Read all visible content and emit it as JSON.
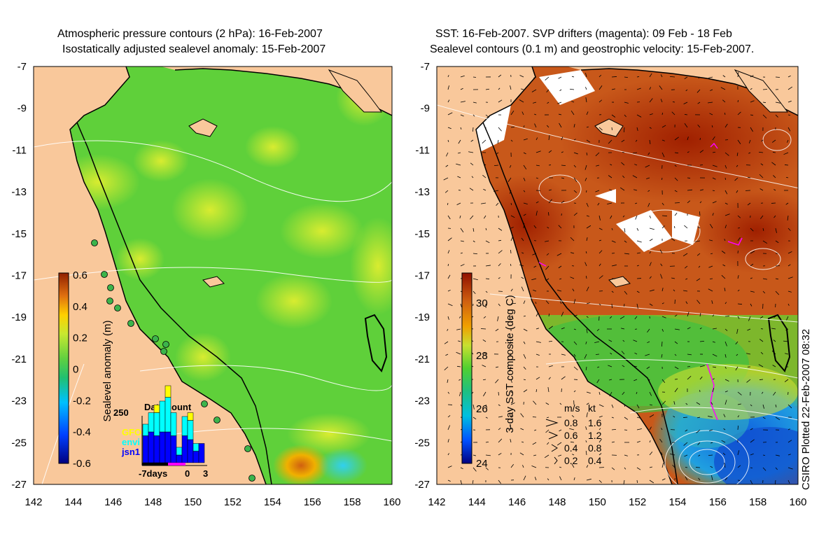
{
  "left_panel": {
    "title_line1": "Atmospheric pressure contours (2 hPa): 16-Feb-2007",
    "title_line2": "Isostatically adjusted sealevel anomaly: 15-Feb-2007",
    "colorbar_label": "Sealevel anomaly (m)",
    "colorbar_ticks": [
      "0.6",
      "0.4",
      "0.2",
      "0",
      "-0.2",
      "-0.4",
      "-0.6"
    ],
    "inset": {
      "title": "Data count",
      "y_max_label": "250",
      "legend": [
        {
          "label": "GFO",
          "color": "#ffff00"
        },
        {
          "label": "envi",
          "color": "#00ffff"
        },
        {
          "label": "jsn1",
          "color": "#0000ff"
        }
      ],
      "x_labels": [
        "-7days",
        "0",
        "3"
      ],
      "bars": [
        {
          "gfo": 0,
          "envi": 30,
          "jsn1": 70
        },
        {
          "gfo": 0,
          "envi": 50,
          "jsn1": 80
        },
        {
          "gfo": 20,
          "envi": 60,
          "jsn1": 70
        },
        {
          "gfo": 0,
          "envi": 80,
          "jsn1": 80
        },
        {
          "gfo": 30,
          "envi": 90,
          "jsn1": 80
        },
        {
          "gfo": 0,
          "envi": 60,
          "jsn1": 70
        },
        {
          "gfo": 0,
          "envi": 20,
          "jsn1": 20
        },
        {
          "gfo": 0,
          "envi": 50,
          "jsn1": 70
        },
        {
          "gfo": 20,
          "envi": 50,
          "jsn1": 60
        },
        {
          "gfo": 0,
          "envi": 20,
          "jsn1": 30
        },
        {
          "gfo": 0,
          "envi": 0,
          "jsn1": 50
        }
      ]
    }
  },
  "right_panel": {
    "title_line1": "SST: 16-Feb-2007. SVP drifters (magenta): 09 Feb - 18 Feb",
    "title_line2": "Sealevel contours (0.1 m) and geostrophic velocity: 15-Feb-2007.",
    "colorbar_label": "3-day SST composite (deg C)",
    "colorbar_ticks": [
      "30",
      "28",
      "26",
      "24"
    ],
    "velocity_key": {
      "header_ms": "m/s",
      "header_kt": "kt",
      "rows": [
        {
          "ms": "0.8",
          "kt": "1.6"
        },
        {
          "ms": "0.6",
          "kt": "1.2"
        },
        {
          "ms": "0.4",
          "kt": "0.8"
        },
        {
          "ms": "0.2",
          "kt": "0.4"
        }
      ]
    },
    "credit": "CSIRO Plotted 22-Feb-2007 08:32"
  },
  "axes": {
    "x_ticks": [
      "142",
      "144",
      "146",
      "148",
      "150",
      "152",
      "154",
      "156",
      "158",
      "160"
    ],
    "y_ticks": [
      "-7",
      "-9",
      "-11",
      "-13",
      "-15",
      "-17",
      "-19",
      "-21",
      "-23",
      "-25",
      "-27"
    ]
  },
  "colors": {
    "land": "#f9c89b",
    "sla_background": "#5fd03a",
    "sst_background": "#c8581a",
    "contour": "#ffffff",
    "coast": "#000000"
  }
}
